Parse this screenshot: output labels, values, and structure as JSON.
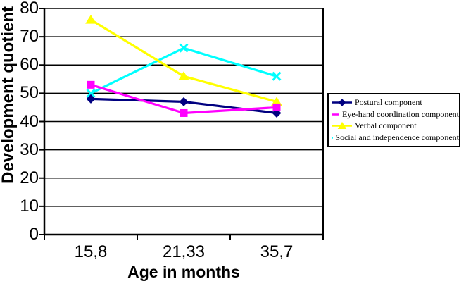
{
  "chart_data": {
    "type": "line",
    "title": "",
    "xlabel": "Age in months",
    "ylabel": "Development quotient",
    "categories": [
      "15,8",
      "21,33",
      "35,7"
    ],
    "y_tick_labels": [
      "0",
      "10",
      "20",
      "30",
      "40",
      "50",
      "60",
      "70",
      "80"
    ],
    "ylim": [
      0,
      80
    ],
    "grid": "horizontal",
    "legend_position": "right",
    "axis_color": "#000000",
    "background_color": "#ffffff",
    "series": [
      {
        "name": "Postural component",
        "marker": "diamond",
        "color": "#000080",
        "values": [
          48,
          47,
          43
        ]
      },
      {
        "name": "Eye-hand coordination component",
        "marker": "square",
        "color": "#ff00ff",
        "values": [
          53,
          43,
          45
        ]
      },
      {
        "name": "Verbal component",
        "marker": "triangle",
        "color": "#ffff00",
        "values": [
          76,
          56,
          47
        ]
      },
      {
        "name": "Social and independence component",
        "marker": "x",
        "color": "#00ffff",
        "values": [
          50,
          66,
          56
        ]
      }
    ]
  }
}
